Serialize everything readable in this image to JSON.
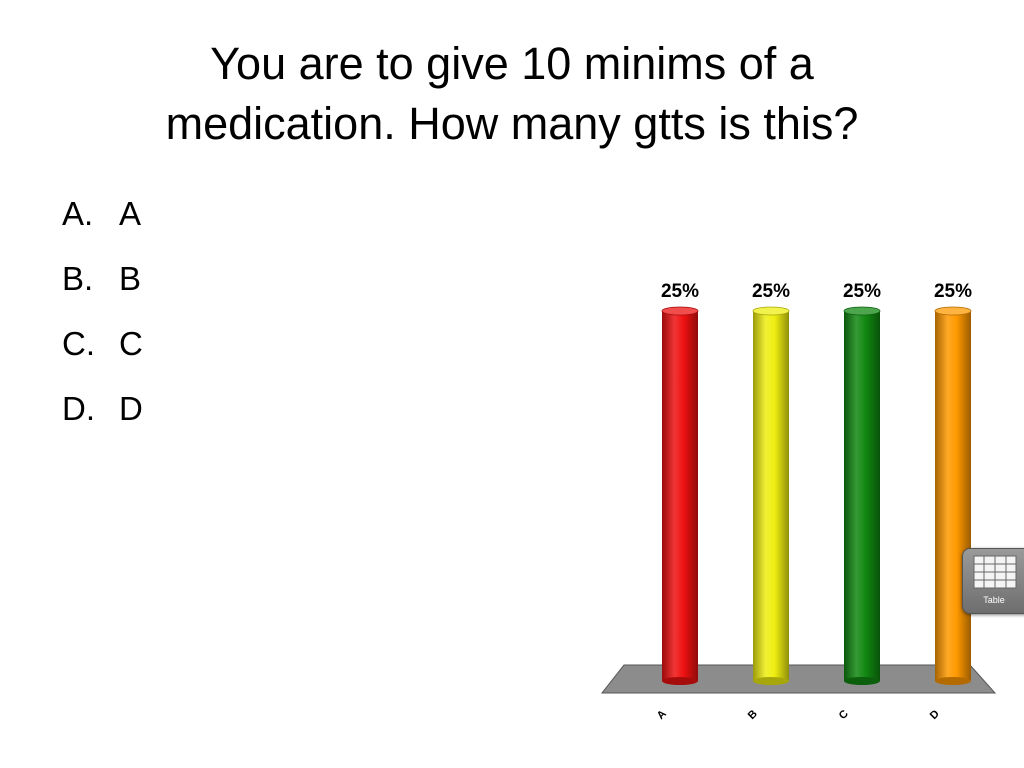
{
  "title": {
    "line1": "You are to give 10 minims of a",
    "line2": "medication.  How many gtts is this?"
  },
  "options": [
    {
      "letter": "A.",
      "text": "A"
    },
    {
      "letter": "B.",
      "text": "B"
    },
    {
      "letter": "C.",
      "text": "C"
    },
    {
      "letter": "D.",
      "text": "D"
    }
  ],
  "chart_data": {
    "type": "bar",
    "categories": [
      "A",
      "B",
      "C",
      "D"
    ],
    "values": [
      25,
      25,
      25,
      25
    ],
    "data_labels": [
      "25%",
      "25%",
      "25%",
      "25%"
    ],
    "colors": [
      "#ee1111",
      "#eeee11",
      "#118811",
      "#ff9900"
    ],
    "ylim": [
      0,
      25
    ],
    "grid": false,
    "style": "3d-cylinder"
  },
  "table_button": {
    "label": "Table",
    "icon": "table-grid-icon"
  }
}
